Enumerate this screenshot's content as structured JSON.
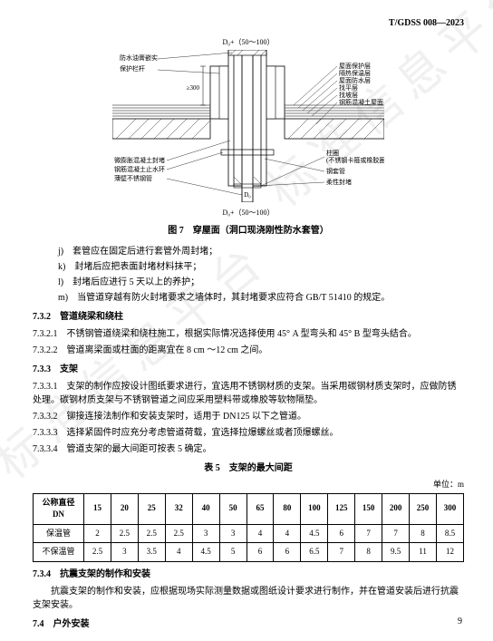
{
  "doc_code": "T/GDSS 008—2023",
  "watermark_text": "标准信息平台",
  "figure": {
    "caption": "图 7　穿屋面（洞口现浇刚性防水套管）",
    "dim_top": "D₀+（50～100）",
    "dim_bottom": "D₀+（50～100）",
    "dim_inner": "D₀",
    "h300": "≥300",
    "labels_left_upper": [
      "防水油膏嵌实",
      "保护栏杆"
    ],
    "labels_right_upper": [
      "屋面保护层",
      "隔热保温层",
      "屋面防水层",
      "找平层",
      "找坡层",
      "钢筋混凝土屋面"
    ],
    "labels_left_lower": [
      "微膨胀混凝土封堵",
      "钢筋混凝土止水环",
      "薄壁不锈钢管"
    ],
    "labels_right_lower": [
      "柱圈",
      "(不锈钢卡箍或橡胶圈)",
      "钢套管",
      "柔性封堵"
    ]
  },
  "list_items": [
    {
      "marker": "j)",
      "text": "套管应在固定后进行套管外周封堵；"
    },
    {
      "marker": "k)",
      "text": "封堵后应把表面封堵材料抹平；"
    },
    {
      "marker": "l)",
      "text": "封堵后应进行 5 天以上的养护；"
    },
    {
      "marker": "m)",
      "text": "当管道穿越有防火封堵要求之墙体时，其封堵要求应符合 GB/T 51410 的规定。"
    }
  ],
  "sec_7_3_2": {
    "num": "7.3.2",
    "title": "管道绕梁和绕柱"
  },
  "clause_7_3_2_1": {
    "num": "7.3.2.1",
    "text": "不锈钢管道绕梁和绕柱施工，根据实际情况选择使用 45° A 型弯头和 45° B 型弯头结合。"
  },
  "clause_7_3_2_2": {
    "num": "7.3.2.2",
    "text": "管道离梁面或柱面的距离宜在 8 cm ～12 cm 之间。"
  },
  "sec_7_3_3": {
    "num": "7.3.3",
    "title": "支架"
  },
  "clause_7_3_3_1": {
    "num": "7.3.3.1",
    "text": "支架的制作应按设计图纸要求进行，宜选用不锈钢材质的支架。当采用碳钢材质支架时，应做防锈处理。碳钢材质支架与不锈钢管道之间应采用塑料带或橡胶等软物隔垫。"
  },
  "clause_7_3_3_2": {
    "num": "7.3.3.2",
    "text": "铆接连接法制作和安装支架时，适用于 DN125 以下之管道。"
  },
  "clause_7_3_3_3": {
    "num": "7.3.3.3",
    "text": "选择紧固件时应充分考虑管道荷载，宜选择拉爆螺丝或者顶爆螺丝。"
  },
  "clause_7_3_3_4": {
    "num": "7.3.3.4",
    "text": "管道支架的最大间距可按表 5 确定。"
  },
  "table5": {
    "caption": "表 5　支架的最大间距",
    "unit": "单位：m",
    "header": [
      "公称直径 DN",
      "15",
      "20",
      "25",
      "32",
      "40",
      "50",
      "65",
      "80",
      "100",
      "125",
      "150",
      "200",
      "250",
      "300"
    ],
    "rows": [
      [
        "保温管",
        "2",
        "2.5",
        "2.5",
        "2.5",
        "3",
        "3",
        "4",
        "4",
        "4.5",
        "6",
        "7",
        "7",
        "8",
        "8.5"
      ],
      [
        "不保温管",
        "2.5",
        "3",
        "3.5",
        "4",
        "4.5",
        "5",
        "6",
        "6",
        "6.5",
        "7",
        "8",
        "9.5",
        "11",
        "12"
      ]
    ]
  },
  "sec_7_3_4": {
    "num": "7.3.4",
    "title": "抗震支架的制作和安装"
  },
  "para_7_3_4": "抗震支架的制作和安装，应根据现场实际测量数据或图纸设计要求进行制作，并在管道安装后进行抗震支架安装。",
  "sec_7_4": {
    "num": "7.4",
    "title": "户外安装"
  },
  "page_number": "9"
}
